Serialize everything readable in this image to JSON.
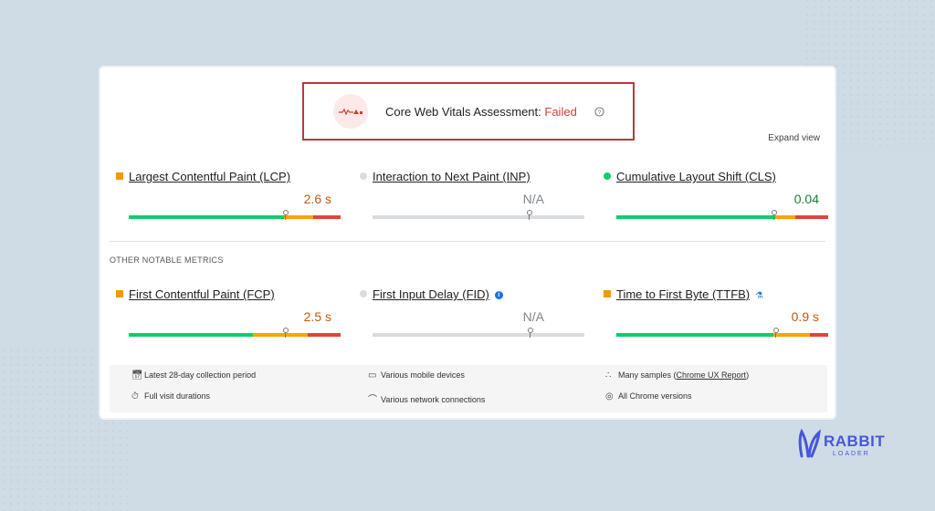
{
  "assessment": {
    "title": "Core Web Vitals Assessment:",
    "status": "Failed",
    "expand_label": "Expand view"
  },
  "metrics": [
    {
      "label": "Largest Contentful Paint (LCP)",
      "value": "2.6 s",
      "status": "needs-improvement",
      "status_color": "#f29900",
      "value_color": "#c05a0c"
    },
    {
      "label": "Interaction to Next Paint (INP)",
      "value": "N/A",
      "status": "no-data",
      "status_color": "#dadce0",
      "value_color": "#80868b"
    },
    {
      "label": "Cumulative Layout Shift (CLS)",
      "value": "0.04",
      "status": "good",
      "status_color": "#0cce6b",
      "value_color": "#188038"
    }
  ],
  "other_heading": "OTHER NOTABLE METRICS",
  "other_metrics": [
    {
      "label": "First Contentful Paint (FCP)",
      "value": "2.5 s",
      "status": "needs-improvement",
      "status_color": "#f29900",
      "value_color": "#c05a0c"
    },
    {
      "label": "First Input Delay (FID)",
      "value": "N/A",
      "status": "no-data",
      "status_color": "#dadce0",
      "value_color": "#80868b",
      "icon": "info-icon"
    },
    {
      "label": "Time to First Byte (TTFB)",
      "value": "0.9 s",
      "status": "needs-improvement",
      "status_color": "#f29900",
      "value_color": "#c05a0c",
      "icon": "flask-icon"
    }
  ],
  "footer": {
    "period": "Latest 28-day collection period",
    "devices": "Various mobile devices",
    "samples_prefix": "Many samples (",
    "samples_link": "Chrome UX Report",
    "samples_suffix": ")",
    "durations": "Full visit durations",
    "network": "Various network connections",
    "versions": "All Chrome versions"
  },
  "brand": {
    "line1": "RABBIT",
    "line2": "LOADER",
    "color": "#4757d8"
  }
}
